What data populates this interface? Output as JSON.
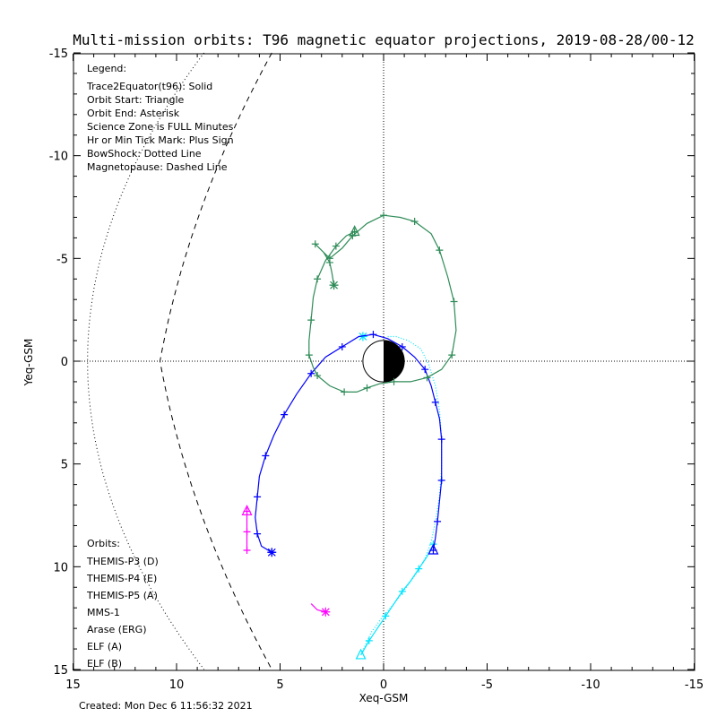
{
  "chart_data": {
    "type": "scatter",
    "title": "Multi-mission orbits: T96 magnetic equator projections, 2019-08-28/00-12",
    "xlabel": "Xeq-GSM",
    "ylabel": "Yeq-GSM",
    "xlim": [
      15,
      -15
    ],
    "ylim": [
      -15,
      15
    ],
    "x_ticks": [
      "15",
      "10",
      "5",
      "0",
      "-5",
      "-10",
      "-15"
    ],
    "y_ticks": [
      "-15",
      "-10",
      "-5",
      "0",
      "5",
      "10",
      "15"
    ],
    "created": "Created: Mon Dec  6 11:56:32 2021",
    "legend": {
      "title": "Legend:",
      "lines": [
        "Trace2Equator(t96): Solid",
        "Orbit Start: Triangle",
        "Orbit End: Asterisk",
        "Science Zone is FULL Minutes",
        "Hr or Min Tick Mark: Plus Sign",
        "BowShock: Dotted Line",
        "Magnetopause: Dashed Line"
      ]
    },
    "orbits_title": "Orbits:",
    "series": [
      {
        "name": "THEMIS-P3 (D)",
        "color": "#00e5ff",
        "points": [
          [
            -2.3,
            8.9
          ],
          [
            -2.5,
            8.0
          ],
          [
            -2.7,
            7.0
          ],
          [
            -2.8,
            6.0
          ],
          [
            -2.9,
            5.0
          ],
          [
            -2.8,
            4.0
          ],
          [
            -2.6,
            3.0
          ],
          [
            -2.4,
            2.0
          ],
          [
            -2.2,
            1.0
          ],
          [
            -1.8,
            0.3
          ],
          [
            -1.2,
            -0.3
          ],
          [
            -0.5,
            -0.9
          ],
          [
            0.3,
            -1.2
          ],
          [
            1.0,
            -1.2
          ],
          [
            2.0,
            -0.7
          ],
          [
            1.0,
            -1.3
          ],
          [
            0.0,
            -1.2
          ],
          [
            -1.0,
            -0.8
          ],
          [
            -2.0,
            -0.2
          ],
          [
            -2.6,
            1.4
          ],
          [
            -2.8,
            2.5
          ]
        ],
        "path": [
          [
            -2.4,
            8.9
          ],
          [
            -2.1,
            9.5
          ],
          [
            -1.7,
            10.1
          ],
          [
            -1.3,
            10.7
          ],
          [
            -0.9,
            11.2
          ],
          [
            -0.5,
            11.8
          ],
          [
            -0.1,
            12.4
          ],
          [
            0.3,
            13.0
          ],
          [
            0.7,
            13.6
          ],
          [
            1.1,
            14.3
          ]
        ],
        "full_path": [
          [
            -0.2,
            -1.2
          ],
          [
            -0.6,
            -1.2
          ],
          [
            -1.2,
            -1.0
          ],
          [
            -1.8,
            -0.6
          ],
          [
            -2.2,
            0.2
          ],
          [
            -2.5,
            1.2
          ],
          [
            -2.7,
            2.4
          ],
          [
            -2.8,
            3.8
          ],
          [
            -2.8,
            5.2
          ],
          [
            -2.7,
            6.6
          ],
          [
            -2.5,
            7.8
          ],
          [
            -2.3,
            8.8
          ],
          [
            -2.0,
            9.6
          ],
          [
            -1.6,
            10.3
          ],
          [
            -1.1,
            11.0
          ],
          [
            -0.5,
            11.8
          ],
          [
            0.1,
            12.5
          ],
          [
            0.6,
            13.2
          ],
          [
            1.1,
            14.3
          ]
        ],
        "start": [
          1.1,
          14.3
        ],
        "end": [
          1.0,
          -1.2
        ]
      },
      {
        "name": "THEMIS-P4 (E)",
        "color": "#0000ff",
        "path": [
          [
            -2.4,
            9.2
          ],
          [
            -2.5,
            8.6
          ],
          [
            -2.6,
            7.8
          ],
          [
            -2.7,
            6.8
          ],
          [
            -2.8,
            5.8
          ],
          [
            -2.8,
            4.8
          ],
          [
            -2.8,
            3.8
          ],
          [
            -2.7,
            2.8
          ],
          [
            -2.5,
            2.0
          ],
          [
            -2.3,
            1.2
          ],
          [
            -2.0,
            0.4
          ],
          [
            -1.5,
            -0.2
          ],
          [
            -0.9,
            -0.7
          ],
          [
            -0.2,
            -1.1
          ],
          [
            0.5,
            -1.3
          ],
          [
            1.2,
            -1.2
          ],
          [
            2.0,
            -0.7
          ],
          [
            2.8,
            -0.2
          ],
          [
            3.5,
            0.6
          ],
          [
            4.2,
            1.6
          ],
          [
            4.8,
            2.6
          ],
          [
            5.3,
            3.6
          ],
          [
            5.7,
            4.6
          ],
          [
            6.0,
            5.6
          ],
          [
            6.1,
            6.6
          ],
          [
            6.2,
            7.6
          ],
          [
            6.1,
            8.4
          ],
          [
            5.9,
            9.0
          ],
          [
            5.4,
            9.3
          ]
        ],
        "start": [
          -2.4,
          9.2
        ],
        "end": [
          5.4,
          9.3
        ]
      },
      {
        "name": "THEMIS-P5 (A)",
        "color": "#ff00ff",
        "path": [
          [
            6.6,
            7.3
          ],
          [
            6.6,
            7.8
          ],
          [
            6.6,
            8.3
          ],
          [
            6.6,
            8.8
          ],
          [
            6.6,
            9.2
          ]
        ],
        "path2": [
          [
            3.5,
            11.8
          ],
          [
            3.2,
            12.1
          ],
          [
            2.8,
            12.2
          ]
        ],
        "start": [
          6.6,
          7.3
        ],
        "end": [
          2.8,
          12.2
        ]
      },
      {
        "name": "MMS-1",
        "color": "#000000"
      },
      {
        "name": "Arase (ERG)",
        "color": "#2e8b57",
        "path": [
          [
            2.4,
            -3.7
          ],
          [
            2.5,
            -4.3
          ],
          [
            2.6,
            -4.8
          ],
          [
            2.9,
            -5.3
          ],
          [
            3.3,
            -5.7
          ],
          [
            3.1,
            -5.5
          ],
          [
            2.6,
            -5.0
          ],
          [
            2.0,
            -5.5
          ],
          [
            1.5,
            -6.1
          ],
          [
            0.8,
            -6.7
          ],
          [
            0.0,
            -7.1
          ],
          [
            -0.8,
            -7.0
          ],
          [
            -1.5,
            -6.8
          ],
          [
            -2.3,
            -6.2
          ],
          [
            -2.7,
            -5.4
          ],
          [
            -3.1,
            -4.1
          ],
          [
            -3.4,
            -2.9
          ],
          [
            -3.5,
            -1.5
          ],
          [
            -3.3,
            -0.3
          ],
          [
            -2.8,
            0.4
          ],
          [
            -2.1,
            0.8
          ],
          [
            -1.3,
            1.0
          ],
          [
            -0.5,
            1.0
          ],
          [
            0.2,
            1.1
          ],
          [
            0.8,
            1.3
          ],
          [
            1.3,
            1.5
          ],
          [
            1.9,
            1.5
          ],
          [
            2.6,
            1.2
          ],
          [
            3.2,
            0.7
          ],
          [
            3.4,
            0.3
          ],
          [
            3.6,
            -0.3
          ],
          [
            3.6,
            -1.0
          ],
          [
            3.5,
            -2.0
          ],
          [
            3.4,
            -3.1
          ],
          [
            3.2,
            -4.0
          ],
          [
            2.8,
            -4.9
          ],
          [
            2.3,
            -5.6
          ],
          [
            1.8,
            -6.1
          ],
          [
            1.4,
            -6.3
          ]
        ],
        "start": [
          1.4,
          -6.3
        ],
        "end": [
          2.4,
          -3.7
        ]
      },
      {
        "name": "ELF (A)",
        "color": "#1e90ff"
      },
      {
        "name": "ELF (B)",
        "color": "#cc0000"
      }
    ]
  }
}
